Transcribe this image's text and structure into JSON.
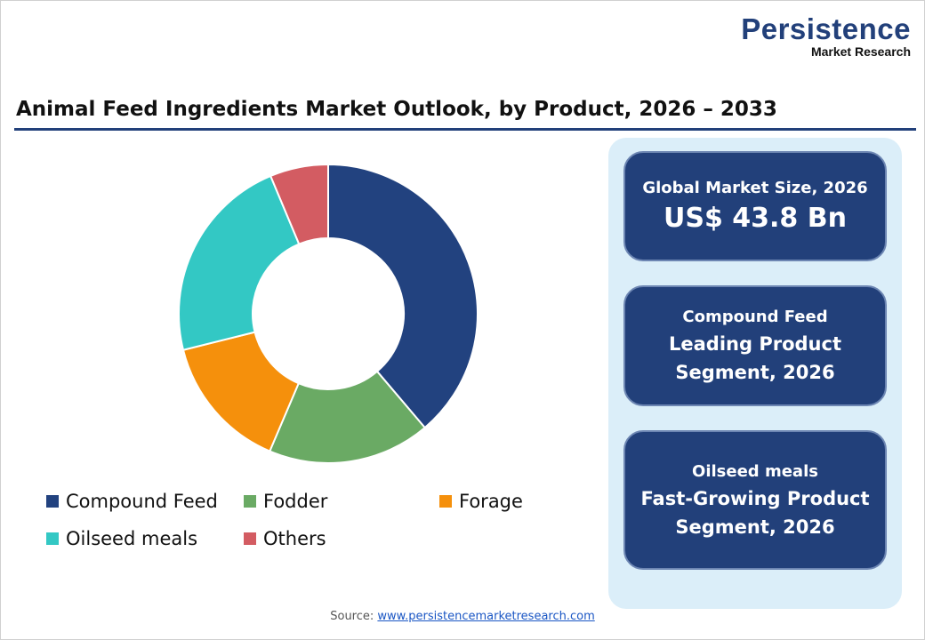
{
  "logo": {
    "line1": "Persistence",
    "line2": "Market Research"
  },
  "title": "Animal Feed Ingredients Market Outlook, by Product, 2026 – 2033",
  "chart_data": {
    "type": "pie",
    "donut": true,
    "categories": [
      "Compound Feed",
      "Fodder",
      "Forage",
      "Oilseed meals",
      "Others"
    ],
    "values": [
      38.8,
      17.6,
      14.7,
      22.6,
      6.3
    ],
    "colors": [
      "#22427f",
      "#6aaa64",
      "#f5900c",
      "#33c8c4",
      "#d35c62"
    ],
    "legend": "bottom"
  },
  "cards": [
    {
      "small": "Global Market Size, 2026",
      "big": "US$ 43.8 Bn"
    },
    {
      "small": "Compound Feed",
      "line1": "Leading Product",
      "line2": "Segment, 2026"
    },
    {
      "small": "Oilseed meals",
      "line1": "Fast-Growing Product",
      "line2": "Segment, 2026"
    }
  ],
  "source": {
    "label": "Source:",
    "link": "www.persistencemarketresearch.com"
  }
}
